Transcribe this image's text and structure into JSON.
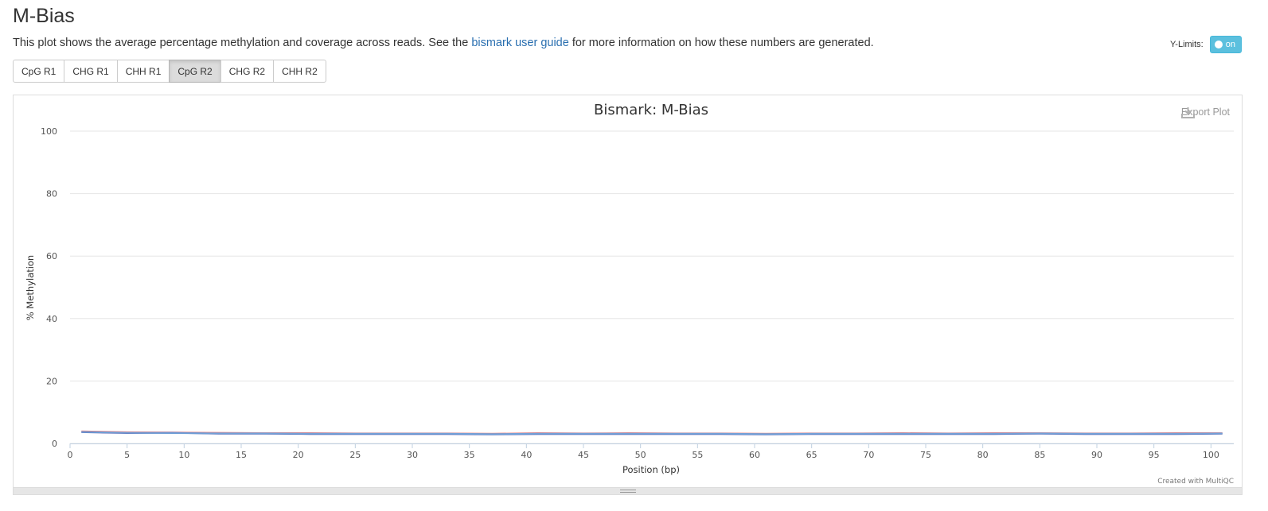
{
  "page": {
    "title": "M-Bias",
    "description_pre": "This plot shows the average percentage methylation and coverage across reads. See the ",
    "description_link": "bismark user guide",
    "description_post": " for more information on how these numbers are generated."
  },
  "ylimits": {
    "label": "Y-Limits:",
    "toggle_label": "on"
  },
  "tabs": [
    {
      "label": "CpG R1",
      "active": false
    },
    {
      "label": "CHG R1",
      "active": false
    },
    {
      "label": "CHH R1",
      "active": false
    },
    {
      "label": "CpG R2",
      "active": true
    },
    {
      "label": "CHG R2",
      "active": false
    },
    {
      "label": "CHH R2",
      "active": false
    }
  ],
  "plot": {
    "export_label": "Export Plot",
    "export_icon": "download-icon",
    "credit": "Created with MultiQC"
  },
  "chart_data": {
    "type": "line",
    "title": "Bismark: M-Bias",
    "xlabel": "Position (bp)",
    "ylabel": "% Methylation",
    "xlim": [
      0,
      102
    ],
    "ylim": [
      0,
      100
    ],
    "xticks": [
      0,
      5,
      10,
      15,
      20,
      25,
      30,
      35,
      40,
      45,
      50,
      55,
      60,
      65,
      70,
      75,
      80,
      85,
      90,
      95,
      100
    ],
    "yticks": [
      0,
      20,
      40,
      60,
      80,
      100
    ],
    "grid": true,
    "series": [
      {
        "color": "#e87b7b",
        "x": [
          1,
          5,
          9,
          13,
          17,
          21,
          25,
          29,
          33,
          37,
          41,
          45,
          49,
          53,
          57,
          61,
          65,
          69,
          73,
          77,
          81,
          85,
          89,
          93,
          97,
          101
        ],
        "y": [
          3.9,
          3.6,
          3.5,
          3.4,
          3.3,
          3.3,
          3.2,
          3.2,
          3.2,
          3.1,
          3.3,
          3.2,
          3.3,
          3.2,
          3.2,
          3.1,
          3.2,
          3.2,
          3.3,
          3.2,
          3.3,
          3.3,
          3.2,
          3.2,
          3.3,
          3.3
        ]
      },
      {
        "color": "#5a5fb0",
        "x": [
          1,
          5,
          9,
          13,
          17,
          21,
          25,
          29,
          33,
          37,
          41,
          45,
          49,
          53,
          57,
          61,
          65,
          69,
          73,
          77,
          81,
          85,
          89,
          93,
          97,
          101
        ],
        "y": [
          3.6,
          3.3,
          3.4,
          3.1,
          3.1,
          3.0,
          3.0,
          3.0,
          3.0,
          2.9,
          3.0,
          3.0,
          3.0,
          3.0,
          3.0,
          2.9,
          3.0,
          3.0,
          3.0,
          3.0,
          3.0,
          3.1,
          3.0,
          3.0,
          3.0,
          3.1
        ]
      },
      {
        "color": "#6fa0d8",
        "x": [
          1,
          5,
          9,
          13,
          17,
          21,
          25,
          29,
          33,
          37,
          41,
          45,
          49,
          53,
          57,
          61,
          65,
          69,
          73,
          77,
          81,
          85,
          89,
          93,
          97,
          101
        ],
        "y": [
          3.7,
          3.4,
          3.3,
          3.2,
          3.2,
          3.1,
          3.1,
          3.1,
          3.1,
          3.0,
          3.1,
          3.1,
          3.1,
          3.1,
          3.1,
          3.0,
          3.1,
          3.1,
          3.1,
          3.1,
          3.1,
          3.2,
          3.1,
          3.1,
          3.1,
          3.2
        ]
      }
    ]
  }
}
